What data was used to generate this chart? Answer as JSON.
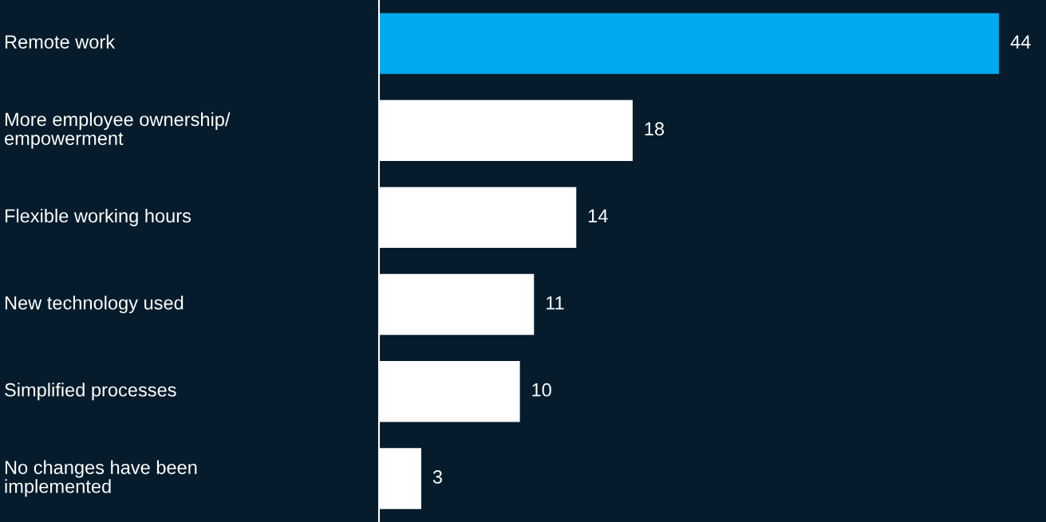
{
  "chart_data": {
    "type": "bar",
    "orientation": "horizontal",
    "categories": [
      "Remote work",
      "More employee ownership/\nempowerment",
      "Flexible working hours",
      "New technology used",
      "Simplified processes",
      "No changes have been\nimplemented"
    ],
    "values": [
      44,
      18,
      14,
      11,
      10,
      3
    ],
    "colors": [
      "#00aaf0",
      "#ffffff",
      "#ffffff",
      "#ffffff",
      "#ffffff",
      "#ffffff"
    ],
    "data_labels": true
  }
}
